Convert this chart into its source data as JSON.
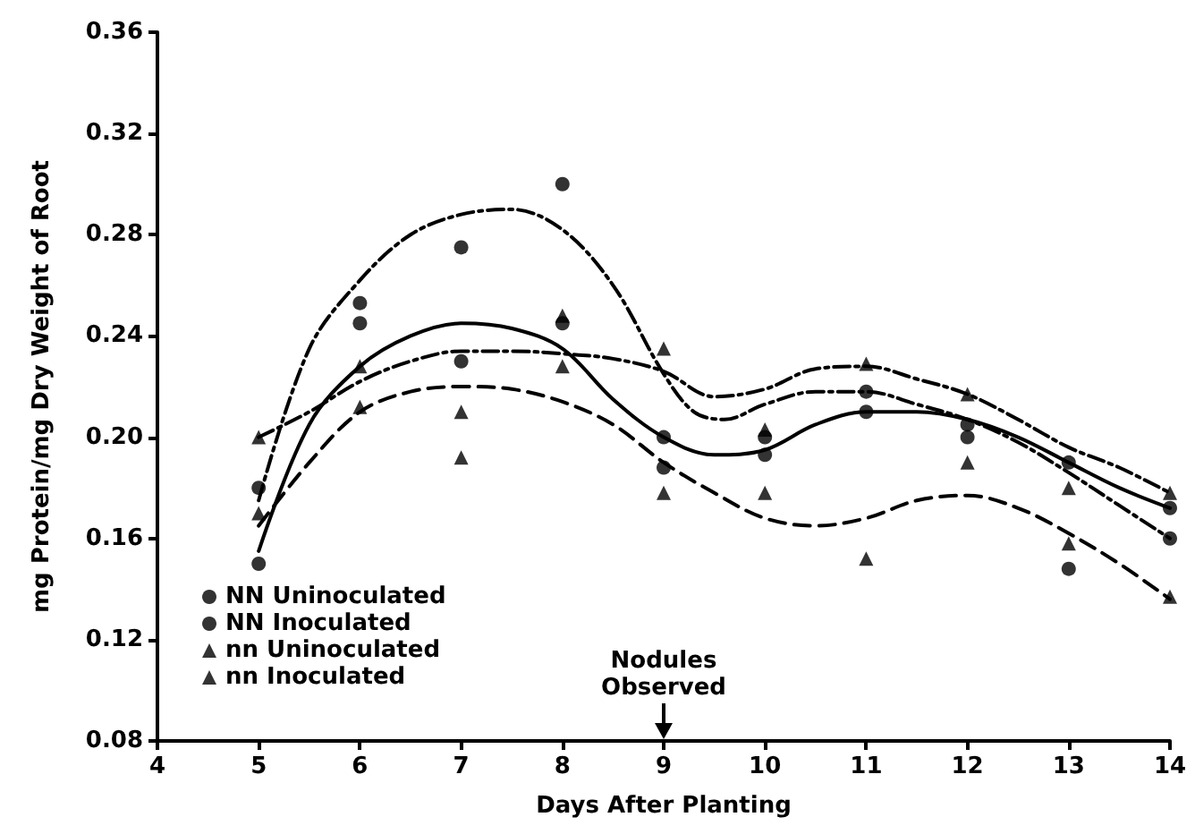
{
  "chart_data": {
    "type": "scatter",
    "xlabel": "Days After Planting",
    "ylabel": "mg Protein/mg Dry Weight of Root",
    "xlim": [
      4,
      14
    ],
    "xticks": [
      4,
      5,
      6,
      7,
      8,
      9,
      10,
      11,
      12,
      13,
      14
    ],
    "ylim": [
      0.08,
      0.36
    ],
    "yticks": [
      {
        "value": 0.08,
        "label": "0.08"
      },
      {
        "value": 0.12,
        "label": "0.12"
      },
      {
        "value": 0.16,
        "label": "0.16"
      },
      {
        "value": 0.2,
        "label": "0.20"
      },
      {
        "value": 0.24,
        "label": "0.24"
      },
      {
        "value": 0.28,
        "label": "0.28"
      },
      {
        "value": 0.32,
        "label": "0.32"
      },
      {
        "value": 0.36,
        "label": "0.36"
      }
    ],
    "grid": false,
    "legend": "bottom left",
    "annotations": [
      "Nodules Observed"
    ],
    "series": [
      {
        "name": "NN Uninoculated",
        "marker": "circle",
        "color": "#000000",
        "x": [
          5,
          6,
          7,
          8,
          9,
          10,
          11,
          12,
          13,
          14
        ],
        "values": [
          0.15,
          0.253,
          0.275,
          0.3,
          0.2,
          0.2,
          0.218,
          0.205,
          0.19,
          0.16
        ]
      },
      {
        "name": "NN Inoculated",
        "marker": "circle",
        "color": "#000000",
        "x": [
          5,
          6,
          7,
          8,
          9,
          10,
          11,
          12,
          13,
          14
        ],
        "values": [
          0.18,
          0.245,
          0.23,
          0.245,
          0.188,
          0.193,
          0.21,
          0.2,
          0.148,
          0.172
        ]
      },
      {
        "name": "nn Uninoculated",
        "marker": "triangle",
        "color": "#000000",
        "x": [
          5,
          6,
          7,
          8,
          9,
          10,
          11,
          12,
          13,
          14
        ],
        "values": [
          0.2,
          0.212,
          0.21,
          0.228,
          0.235,
          0.203,
          0.229,
          0.217,
          0.18,
          0.178
        ]
      },
      {
        "name": "nn Inoculated",
        "marker": "triangle",
        "color": "#000000",
        "x": [
          5,
          6,
          7,
          8,
          9,
          10,
          11,
          12,
          13,
          14
        ],
        "values": [
          0.17,
          0.228,
          0.192,
          0.248,
          0.178,
          0.178,
          0.152,
          0.19,
          0.158,
          0.137
        ]
      },
      {
        "type": "line",
        "line_style": "dotted",
        "color": "#000000",
        "x": [
          5,
          5.5,
          6,
          6.5,
          7,
          7.5,
          8,
          8.5,
          9,
          9.3,
          9.6,
          10,
          10.5,
          11,
          11.5,
          12,
          12.5,
          13,
          13.5,
          14
        ],
        "values": [
          0.175,
          0.235,
          0.262,
          0.28,
          0.288,
          0.29,
          0.282,
          0.26,
          0.225,
          0.21,
          0.207,
          0.213,
          0.218,
          0.218,
          0.213,
          0.207,
          0.198,
          0.186,
          0.173,
          0.16
        ]
      },
      {
        "type": "line",
        "line_style": "solid",
        "color": "#000000",
        "x": [
          5,
          5.5,
          6,
          6.5,
          7,
          7.5,
          8,
          8.5,
          9,
          9.5,
          10,
          10.5,
          11,
          11.5,
          12,
          12.5,
          13,
          13.5,
          14
        ],
        "values": [
          0.155,
          0.205,
          0.228,
          0.24,
          0.245,
          0.243,
          0.235,
          0.215,
          0.2,
          0.193,
          0.195,
          0.205,
          0.21,
          0.21,
          0.207,
          0.2,
          0.19,
          0.18,
          0.172
        ]
      },
      {
        "type": "line",
        "line_style": "dotted",
        "color": "#000000",
        "x": [
          5,
          5.5,
          6,
          6.5,
          7,
          7.5,
          8,
          8.5,
          9,
          9.5,
          10,
          10.5,
          11,
          11.5,
          12,
          12.5,
          13,
          13.5,
          14
        ],
        "values": [
          0.2,
          0.21,
          0.222,
          0.23,
          0.234,
          0.234,
          0.233,
          0.231,
          0.226,
          0.216,
          0.219,
          0.227,
          0.228,
          0.223,
          0.217,
          0.207,
          0.196,
          0.188,
          0.178
        ]
      },
      {
        "type": "line",
        "line_style": "dashed",
        "color": "#000000",
        "x": [
          5,
          5.5,
          6,
          6.5,
          7,
          7.5,
          8,
          8.5,
          9,
          9.5,
          10,
          10.5,
          11,
          11.5,
          12,
          12.5,
          13,
          13.5,
          14
        ],
        "values": [
          0.165,
          0.19,
          0.21,
          0.218,
          0.22,
          0.219,
          0.214,
          0.205,
          0.19,
          0.178,
          0.168,
          0.165,
          0.168,
          0.175,
          0.177,
          0.172,
          0.162,
          0.15,
          0.136
        ]
      }
    ]
  }
}
